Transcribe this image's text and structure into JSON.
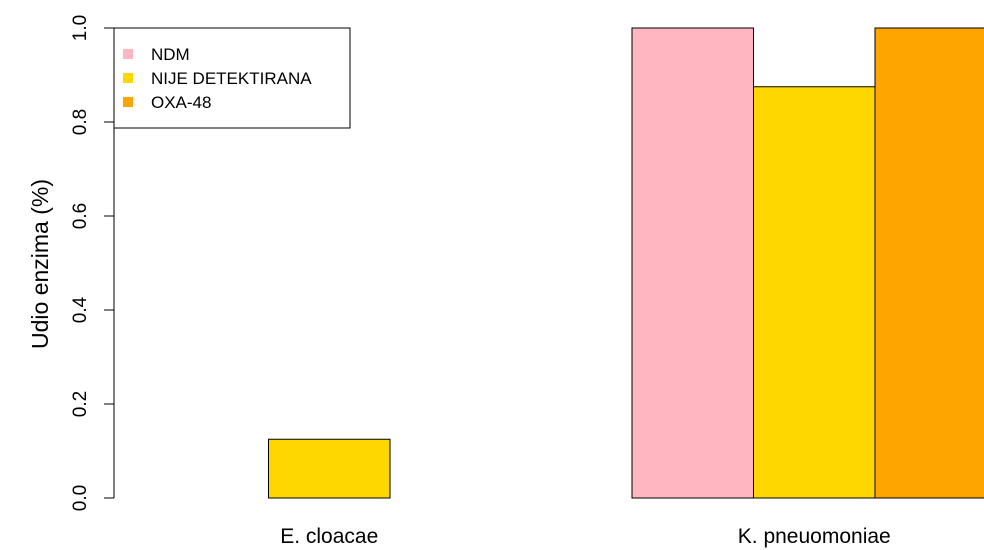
{
  "chart_data": {
    "type": "bar",
    "title": "",
    "xlabel": "",
    "ylabel": "Udio enzima (%)",
    "ylim": [
      0,
      1.0
    ],
    "yticks": [
      "0.0",
      "0.2",
      "0.4",
      "0.6",
      "0.8",
      "1.0"
    ],
    "grid": false,
    "legend_position": "top-left",
    "categories": [
      "E. cloacae",
      "K. pneuomoniae"
    ],
    "series": [
      {
        "name": "NDM",
        "color": "#FFB6C1",
        "values": [
          0.0,
          1.0
        ]
      },
      {
        "name": "NIJE DETEKTIRANA",
        "color": "#FFD700",
        "values": [
          0.125,
          0.875
        ]
      },
      {
        "name": "OXA-48",
        "color": "#FFA500",
        "values": [
          0.0,
          1.0
        ]
      }
    ]
  }
}
